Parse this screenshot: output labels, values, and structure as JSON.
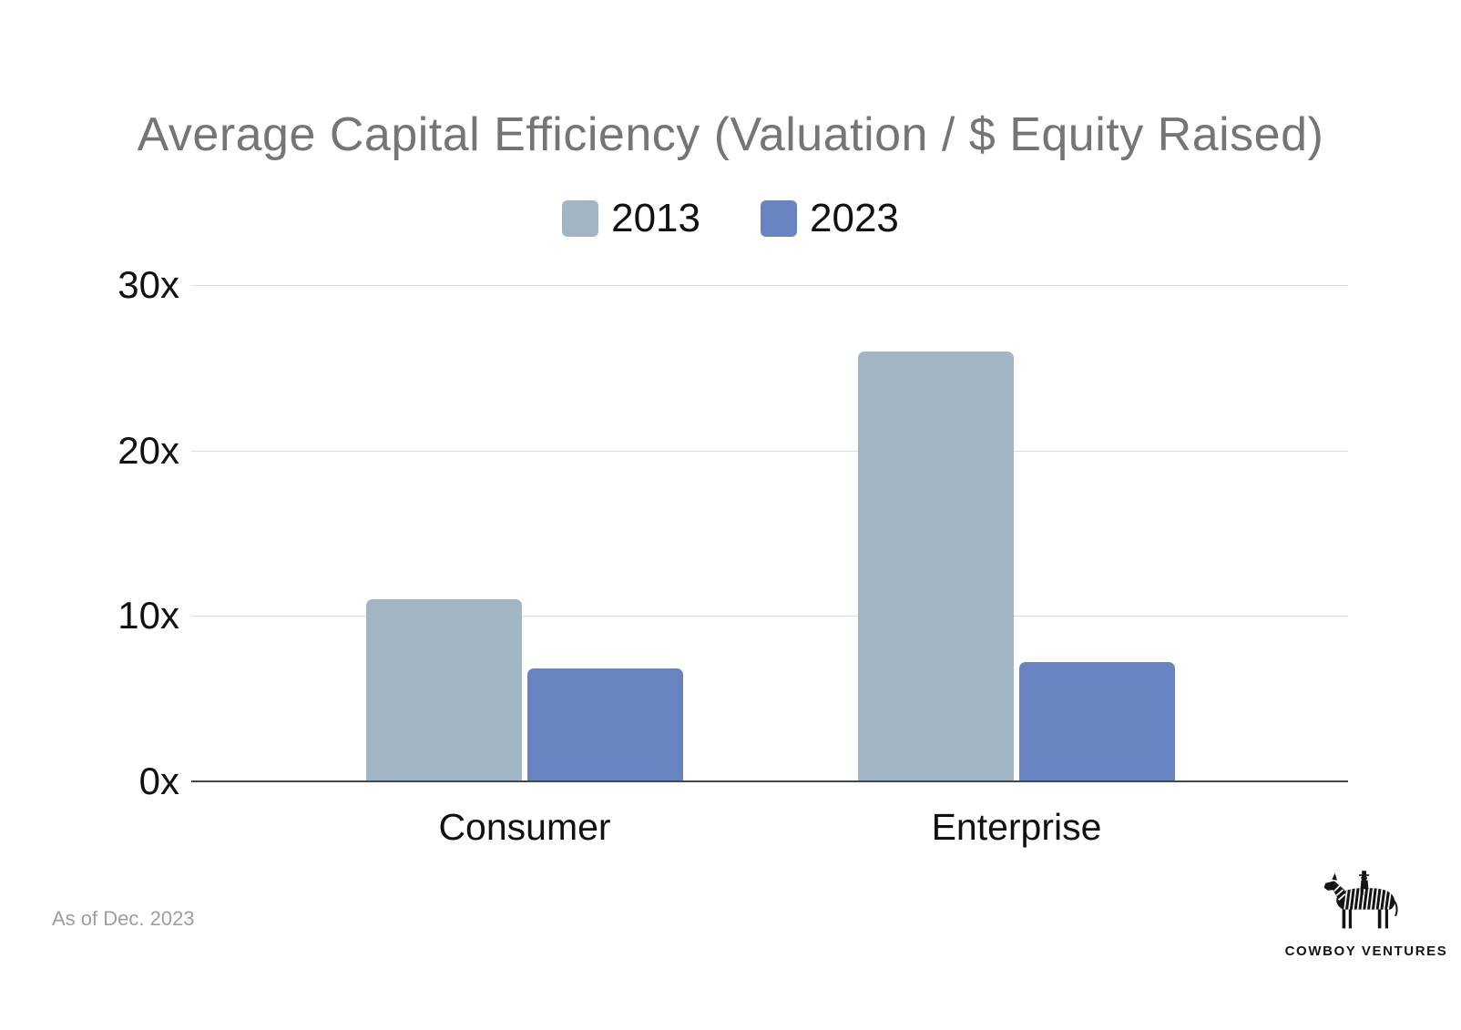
{
  "title": "Average Capital Efficiency (Valuation / $ Equity Raised)",
  "footnote": "As of Dec. 2023",
  "logo": {
    "company": "Cowboy Ventures",
    "wordmark": "COWBOY VENTURES",
    "icon": "zebra-with-rider"
  },
  "colors": {
    "title-text": "#757575",
    "axis-text": "#111111",
    "grid-line": "#dcdcdc",
    "axis-line": "#474747",
    "footnote-text": "#9e9e9e",
    "logo-ink": "#141414",
    "series-2013": "#a2b5c4",
    "series-2023": "#6784c1"
  },
  "chart_data": {
    "type": "bar",
    "title": "Average Capital Efficiency (Valuation / $ Equity Raised)",
    "categories": [
      "Consumer",
      "Enterprise"
    ],
    "series": [
      {
        "name": "2013",
        "color": "#a2b5c4",
        "values": [
          11,
          26
        ]
      },
      {
        "name": "2023",
        "color": "#6784c1",
        "values": [
          6.8,
          7.2
        ]
      }
    ],
    "xlabel": "",
    "ylabel": "",
    "ylim": [
      0,
      30
    ],
    "y_ticks": [
      0,
      10,
      20,
      30
    ],
    "y_tick_labels": [
      "0x",
      "10x",
      "20x",
      "30x"
    ],
    "grid": true,
    "legend_position": "top-center"
  }
}
